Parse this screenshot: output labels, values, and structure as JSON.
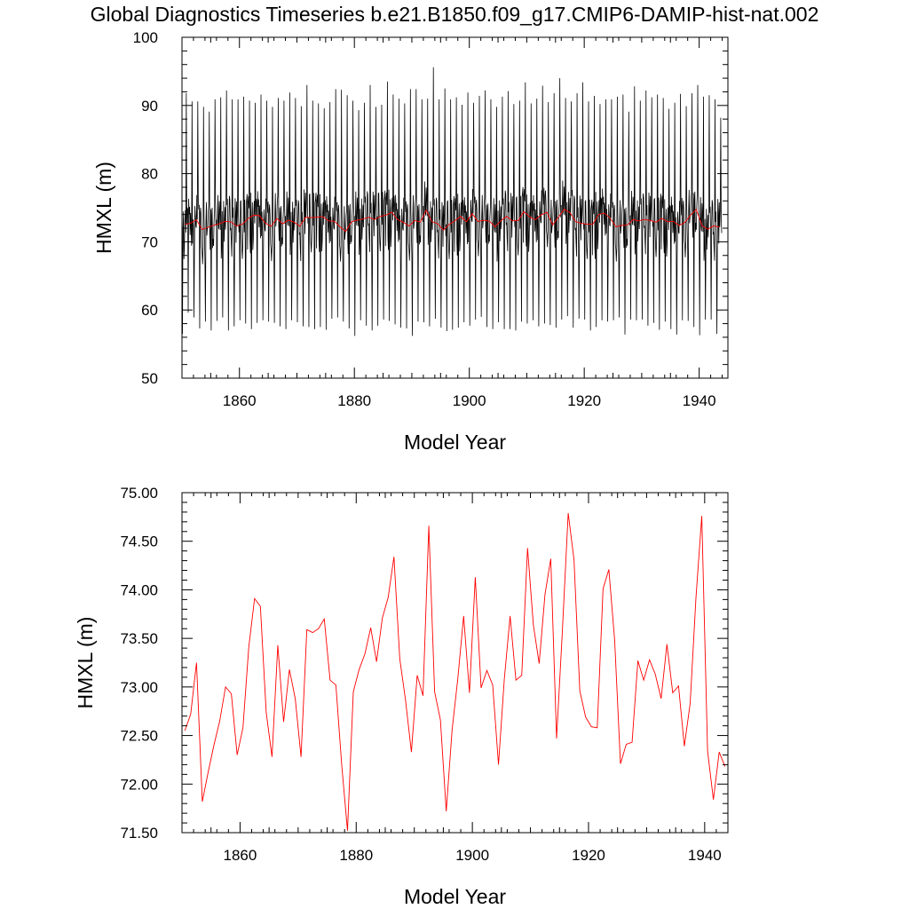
{
  "title": "Global Diagnostics Timeseries b.e21.B1850.f09_g17.CMIP6-DAMIP-hist-nat.002",
  "colors": {
    "monthly": "#000000",
    "annual": "#ff0000",
    "axes": "#000000"
  },
  "chart_data": [
    {
      "type": "line",
      "xlabel": "Model Year",
      "ylabel": "HMXL (m)",
      "xlim": [
        1850,
        1945
      ],
      "ylim": [
        50,
        100
      ],
      "xticks": [
        "1860",
        "1880",
        "1900",
        "1920",
        "1940"
      ],
      "yticks": [
        "50",
        "60",
        "70",
        "80",
        "90",
        "100"
      ],
      "series": [
        {
          "kind": "monthly",
          "cycle_high": [
            91.8,
            90.6,
            90.6,
            89.8,
            89.1,
            90.9,
            91.2,
            92.2,
            90.9,
            90.9,
            91.3,
            90.7,
            90.4,
            91.6,
            90.7,
            89.8,
            91.1,
            90.7,
            91.9,
            91.1,
            89.9,
            93.0,
            90.7,
            90.3,
            89.6,
            90.5,
            92.4,
            92.3,
            91.5,
            90.7,
            89.3,
            90.4,
            93.0,
            89.8,
            90.1,
            93.5,
            91.6,
            91.0,
            90.3,
            92.4,
            92.4,
            90.9,
            91.0,
            95.6,
            90.9,
            92.5,
            90.9,
            91.2,
            90.1,
            91.9,
            90.4,
            91.4,
            92.2,
            90.9,
            89.8,
            91.3,
            92.1,
            90.2,
            90.7,
            93.4,
            90.3,
            91.0,
            92.9,
            90.5,
            91.8,
            94.0,
            91.1,
            90.6,
            91.8,
            93.4,
            90.6,
            91.4,
            90.2,
            90.9,
            90.9,
            91.3,
            91.6,
            89.1,
            92.8,
            90.7,
            92.2,
            91.2,
            91.6,
            91.1,
            89.5,
            90.4,
            91.7,
            89.9,
            91.8,
            93.0,
            91.3,
            91.5,
            90.9,
            88.2
          ],
          "cycle_low": [
            56.5,
            59.6,
            58.9,
            57.3,
            58.3,
            57.0,
            58.4,
            58.9,
            57.0,
            57.6,
            58.5,
            58.0,
            57.2,
            58.1,
            58.5,
            58.3,
            58.1,
            57.6,
            57.2,
            58.5,
            58.2,
            57.6,
            57.5,
            57.2,
            57.5,
            57.1,
            58.7,
            58.9,
            58.3,
            57.3,
            56.2,
            58.5,
            57.7,
            57.0,
            57.7,
            58.6,
            58.4,
            57.9,
            57.4,
            57.3,
            56.2,
            58.3,
            58.2,
            57.6,
            58.7,
            57.4,
            56.9,
            57.1,
            57.4,
            58.2,
            57.7,
            58.6,
            59.0,
            57.5,
            57.2,
            58.2,
            57.2,
            57.2,
            57.0,
            58.3,
            58.0,
            58.5,
            57.6,
            58.0,
            57.8,
            57.4,
            58.6,
            59.1,
            57.4,
            58.7,
            58.6,
            57.0,
            57.5,
            58.5,
            58.3,
            58.5,
            58.9,
            56.4,
            58.6,
            58.5,
            58.6,
            57.7,
            58.1,
            57.1,
            58.3,
            57.2,
            56.4,
            58.5,
            58.4,
            57.5,
            56.3,
            58.6,
            58.6,
            56.5
          ]
        },
        {
          "kind": "annual",
          "x_start": 1850.5,
          "values": [
            72.55,
            72.72,
            73.25,
            71.82,
            72.12,
            72.4,
            72.65,
            73.0,
            72.93,
            72.3,
            72.58,
            73.41,
            73.91,
            73.83,
            72.74,
            72.28,
            73.43,
            72.64,
            73.18,
            72.88,
            72.28,
            73.59,
            73.56,
            73.6,
            73.7,
            73.07,
            73.02,
            72.2,
            71.52,
            72.95,
            73.18,
            73.34,
            73.61,
            73.26,
            73.71,
            73.92,
            74.34,
            73.29,
            72.86,
            72.33,
            73.12,
            72.91,
            74.66,
            72.95,
            72.66,
            71.72,
            72.55,
            73.09,
            73.73,
            72.94,
            74.13,
            72.99,
            73.17,
            73.02,
            72.2,
            73.08,
            73.73,
            73.07,
            73.12,
            74.43,
            73.64,
            73.24,
            73.95,
            74.32,
            72.47,
            73.58,
            74.79,
            74.31,
            72.96,
            72.69,
            72.59,
            72.58,
            74.01,
            74.21,
            73.48,
            72.21,
            72.41,
            72.43,
            73.27,
            73.07,
            73.28,
            73.13,
            72.88,
            73.44,
            72.94,
            73.01,
            72.39,
            72.83,
            73.92,
            74.76,
            72.34,
            71.84,
            72.33,
            72.18
          ]
        }
      ]
    },
    {
      "type": "line",
      "xlabel": "Model Year",
      "ylabel": "HMXL (m)",
      "xlim": [
        1850,
        1944
      ],
      "ylim": [
        71.5,
        75.0
      ],
      "xticks": [
        "1860",
        "1880",
        "1900",
        "1920",
        "1940"
      ],
      "yticks": [
        "71.50",
        "72.00",
        "72.50",
        "73.00",
        "73.50",
        "74.00",
        "74.50",
        "75.00"
      ],
      "series": [
        {
          "kind": "annual",
          "source": 0
        }
      ]
    }
  ]
}
